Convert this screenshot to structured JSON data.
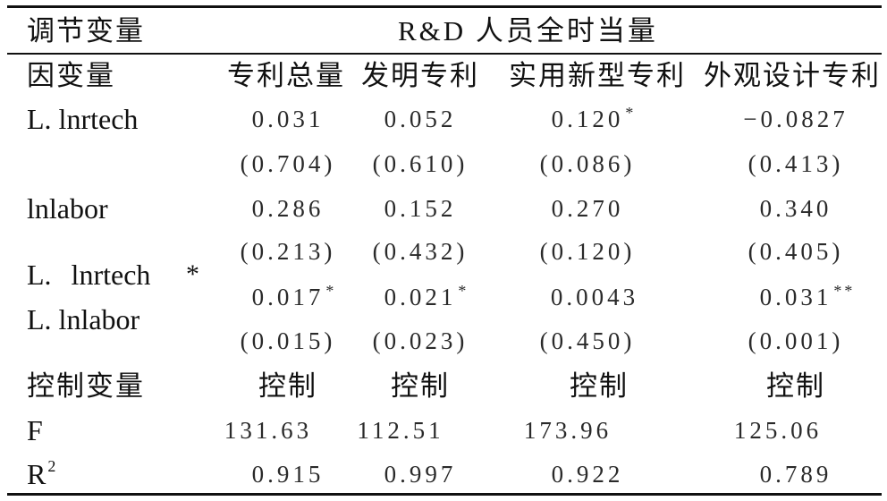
{
  "table": {
    "moderator": {
      "label": "调节变量",
      "value": "R&D 人员全时当量"
    },
    "dependent": {
      "label": "因变量",
      "columns": [
        "专利总量",
        "发明专利",
        "实用新型专利",
        "外观设计专利"
      ]
    },
    "rows": {
      "lnrtech": {
        "label": "L. lnrtech",
        "coef": [
          {
            "v": "0.031"
          },
          {
            "v": "0.052"
          },
          {
            "v": "0.120",
            "sig": "*"
          },
          {
            "v": "−0.0827"
          }
        ],
        "p": [
          "(0.704)",
          "(0.610)",
          "(0.086)",
          "(0.413)"
        ]
      },
      "lnlabor": {
        "label": "lnlabor",
        "coef": [
          {
            "v": "0.286"
          },
          {
            "v": "0.152"
          },
          {
            "v": "0.270"
          },
          {
            "v": "0.340"
          }
        ],
        "p": [
          "(0.213)",
          "(0.432)",
          "(0.120)",
          "(0.405)"
        ]
      },
      "interaction": {
        "label_line1": "L. lnrtech",
        "operator": "*",
        "label_line2": "L. lnlabor",
        "coef": [
          {
            "v": "0.017",
            "sig": "*"
          },
          {
            "v": "0.021",
            "sig": "*"
          },
          {
            "v": "0.0043"
          },
          {
            "v": "0.031",
            "sig": "**"
          }
        ],
        "p": [
          "(0.015)",
          "(0.023)",
          "(0.450)",
          "(0.001)"
        ]
      },
      "controls": {
        "label": "控制变量",
        "values": [
          "控制",
          "控制",
          "控制",
          "控制"
        ]
      },
      "f_stat": {
        "label": "F",
        "values": [
          "131.63",
          "112.51",
          "173.96",
          "125.06"
        ]
      },
      "r_squared": {
        "label": "R",
        "label_sup": "2",
        "values": [
          "0.915",
          "0.997",
          "0.922",
          "0.789"
        ]
      }
    }
  }
}
